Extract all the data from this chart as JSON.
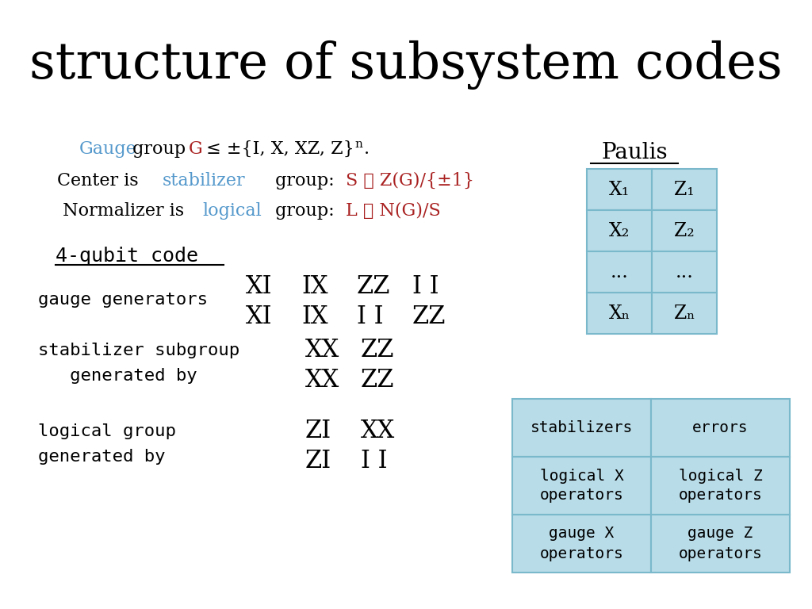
{
  "title": "structure of subsystem codes",
  "bg_color": "#ffffff",
  "blue": "#5599cc",
  "red": "#aa2222",
  "black": "#000000",
  "table_bg": "#b8dce8",
  "table_edge": "#7ab8cc",
  "paulis_rows": [
    [
      "X₁",
      "Z₁"
    ],
    [
      "X₂",
      "Z₂"
    ],
    [
      "...",
      "..."
    ],
    [
      "Xₙ",
      "Zₙ"
    ]
  ],
  "ops_rows": [
    [
      "stabilizers",
      "errors"
    ],
    [
      "logical X\noperators",
      "logical Z\noperators"
    ],
    [
      "gauge X\noperators",
      "gauge Z\noperators"
    ]
  ]
}
